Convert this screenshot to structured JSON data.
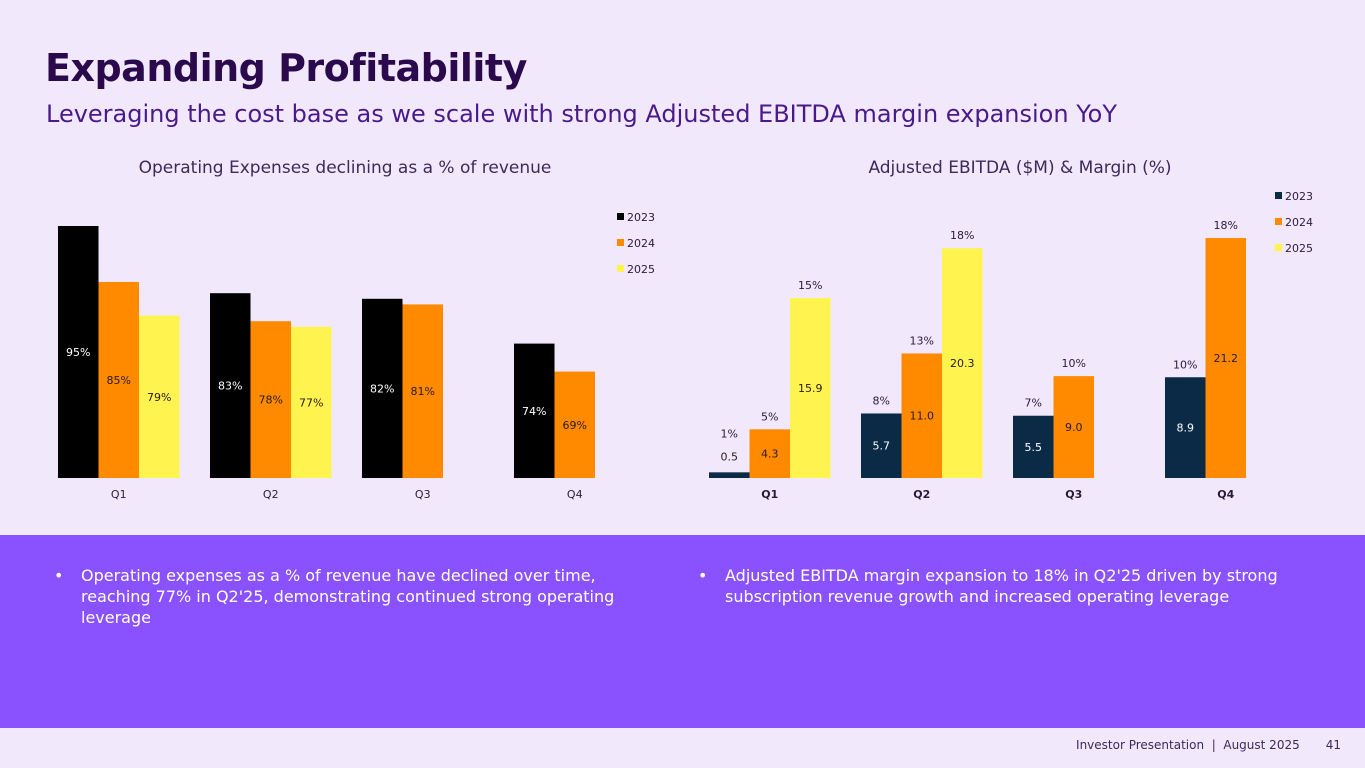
{
  "title": "Expanding Profitability",
  "subtitle": "Leveraging the cost base as we scale with strong Adjusted EBITDA margin expansion YoY",
  "bullets": [
    {
      "icon": "bullet-dot",
      "mark": "•",
      "text": "Operating expenses as a % of revenue have declined over time, reaching 77% in Q2'25, demonstrating continued strong operating leverage"
    },
    {
      "icon": "bullet-dot",
      "mark": "•",
      "text": "Adjusted EBITDA margin expansion to 18% in Q2'25 driven by strong subscription revenue growth and increased operating leverage"
    }
  ],
  "footer": {
    "text": "Investor Presentation  |  August 2025",
    "page": "41"
  },
  "chart_data": [
    {
      "type": "bar",
      "title": "Operating Expenses declining as a % of revenue",
      "categories": [
        "Q1",
        "Q2",
        "Q3",
        "Q4"
      ],
      "ylim": [
        50,
        100
      ],
      "legend": "top-right",
      "series": [
        {
          "name": "2023",
          "color": "#000000",
          "labelColor": "#ffffff",
          "values": [
            95,
            83,
            82,
            74
          ],
          "labels": [
            "95%",
            "83%",
            "82%",
            "74%"
          ]
        },
        {
          "name": "2024",
          "color": "#ff8a00",
          "labelColor": "#2a1a1a",
          "values": [
            85,
            78,
            81,
            69
          ],
          "labels": [
            "85%",
            "78%",
            "81%",
            "69%"
          ]
        },
        {
          "name": "2025",
          "color": "#fff44f",
          "labelColor": "#2a1a1a",
          "values": [
            79,
            77,
            null,
            null
          ],
          "labels": [
            "79%",
            "77%",
            "",
            ""
          ]
        }
      ]
    },
    {
      "type": "bar",
      "title": "Adjusted EBITDA ($M) & Margin (%)",
      "categories": [
        "Q1",
        "Q2",
        "Q3",
        "Q4"
      ],
      "ylim": [
        0,
        21.2
      ],
      "legend": "top-right",
      "series": [
        {
          "name": "2023",
          "color": "#0b2a45",
          "labelColor": "#ffffff",
          "values": [
            0.5,
            5.7,
            5.5,
            8.9
          ],
          "labels": [
            "0.5",
            "5.7",
            "5.5",
            "8.9"
          ],
          "margins": [
            "1%",
            "8%",
            "7%",
            "10%"
          ]
        },
        {
          "name": "2024",
          "color": "#ff8a00",
          "labelColor": "#2a1a1a",
          "values": [
            4.3,
            11.0,
            9.0,
            21.2
          ],
          "labels": [
            "4.3",
            "11.0",
            "9.0",
            "21.2"
          ],
          "margins": [
            "5%",
            "13%",
            "10%",
            "18%"
          ]
        },
        {
          "name": "2025",
          "color": "#fff44f",
          "labelColor": "#2a1a1a",
          "values": [
            15.9,
            20.3,
            null,
            null
          ],
          "labels": [
            "15.9",
            "20.3",
            "",
            ""
          ],
          "margins": [
            "15%",
            "18%",
            "",
            ""
          ]
        }
      ]
    }
  ]
}
